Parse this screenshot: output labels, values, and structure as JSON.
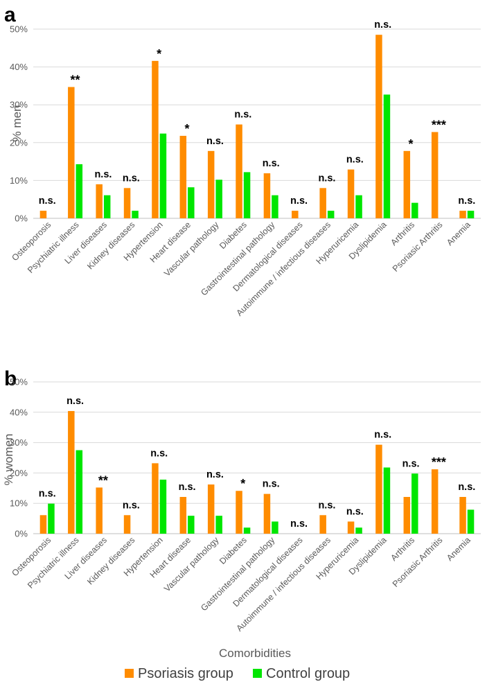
{
  "colors": {
    "psoriasis": "#ff8c00",
    "control": "#00e600",
    "grid": "#d9d9d9",
    "text": "#595959"
  },
  "xlabel": "Comorbidities",
  "legend": [
    {
      "label": "Psoriasis group",
      "color": "#ff8c00"
    },
    {
      "label": "Control group",
      "color": "#00e600"
    }
  ],
  "chart_data": [
    {
      "type": "bar",
      "panel": "a",
      "ylabel": "% men",
      "ylim": [
        0,
        50
      ],
      "yticks": [
        "0%",
        "10%",
        "20%",
        "30%",
        "40%",
        "50%"
      ],
      "grid": true,
      "categories": [
        "Osteoporosis",
        "Psychiatric illness",
        "Liver diseases",
        "Kidney diseases",
        "Hypertension",
        "Heart disease",
        "Vascular pathology",
        "Diabetes",
        "Gastrointestinal pathology",
        "Dermatological diseases",
        "Autoimmune / infectious diseases",
        "Hyperuricemia",
        "Dyslipidemia",
        "Arthritis",
        "Psoriasic Arthritis",
        "Anemia"
      ],
      "series": [
        {
          "name": "Psoriasis group",
          "values": [
            2,
            34.7,
            9,
            8,
            41.6,
            21.8,
            17.8,
            24.8,
            11.9,
            2,
            8,
            12.9,
            48.5,
            17.8,
            22.8,
            2
          ]
        },
        {
          "name": "Control group",
          "values": [
            0,
            14.3,
            6.1,
            2,
            22.4,
            8.2,
            10.2,
            12.2,
            6.1,
            0,
            2,
            6.1,
            32.7,
            4.1,
            0,
            2
          ]
        }
      ],
      "annotations": [
        "n.s.",
        "**",
        "n.s.",
        "n.s.",
        "*",
        "*",
        "n.s.",
        "n.s.",
        "n.s.",
        "n.s.",
        "n.s.",
        "n.s.",
        "n.s.",
        "*",
        "***",
        "n.s."
      ]
    },
    {
      "type": "bar",
      "panel": "b",
      "ylabel": "% women",
      "ylim": [
        0,
        50
      ],
      "yticks": [
        "0%",
        "10%",
        "20%",
        "30%",
        "40%",
        "50%"
      ],
      "grid": true,
      "categories": [
        "Osteoporosis",
        "Psychiatric illness",
        "Liver diseases",
        "Kidney diseases",
        "Hypertension",
        "Heart disease",
        "Vascular pathology",
        "Diabetes",
        "Gastrointestinal pathology",
        "Dermatological diseases",
        "Autoimmune / infectious diseases",
        "Hyperuricemia",
        "Dyslipidemia",
        "Arthritis",
        "Psoriasic Arthritis",
        "Anemia"
      ],
      "series": [
        {
          "name": "Psoriasis group",
          "values": [
            6.1,
            40.4,
            15.2,
            6.1,
            23.2,
            12.1,
            16.2,
            14.1,
            13.1,
            0,
            6.1,
            4,
            29.3,
            12.1,
            21.2,
            12.1
          ]
        },
        {
          "name": "Control group",
          "values": [
            9.9,
            27.5,
            0,
            0,
            17.8,
            5.9,
            5.9,
            2,
            4,
            0,
            0,
            2,
            21.8,
            19.8,
            0,
            7.9
          ]
        }
      ],
      "annotations": [
        "n.s.",
        "n.s.",
        "**",
        "n.s.",
        "n.s.",
        "n.s.",
        "n.s.",
        "*",
        "n.s.",
        "n.s.",
        "n.s.",
        "n.s.",
        "n.s.",
        "n.s.",
        "***",
        "n.s."
      ]
    }
  ]
}
